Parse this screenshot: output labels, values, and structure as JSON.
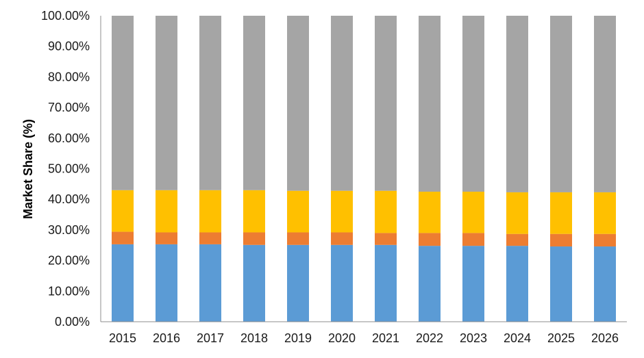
{
  "chart_data": {
    "type": "bar",
    "stacked": true,
    "categories": [
      "2015",
      "2016",
      "2017",
      "2018",
      "2019",
      "2020",
      "2021",
      "2022",
      "2023",
      "2024",
      "2025",
      "2026"
    ],
    "series": [
      {
        "color": "#5B9BD5",
        "values": [
          25.3,
          25.3,
          25.3,
          25.1,
          25.1,
          25.1,
          25.1,
          24.8,
          24.8,
          24.8,
          24.6,
          24.6
        ]
      },
      {
        "color": "#ED7D31",
        "values": [
          4.1,
          3.9,
          3.9,
          4.1,
          4.1,
          4.1,
          3.9,
          4.2,
          4.2,
          3.9,
          4.1,
          4.1
        ]
      },
      {
        "color": "#FFC000",
        "values": [
          13.6,
          13.8,
          13.8,
          13.8,
          13.6,
          13.6,
          13.8,
          13.5,
          13.5,
          13.6,
          13.6,
          13.6
        ]
      },
      {
        "color": "#A5A5A5",
        "values": [
          57.0,
          57.0,
          57.0,
          57.0,
          57.2,
          57.2,
          57.2,
          57.5,
          57.5,
          57.7,
          57.7,
          57.7
        ]
      }
    ],
    "ylabel": "Market Share (%)",
    "xlabel": "",
    "ylim": [
      0,
      100
    ],
    "yticks": [
      "0.00%",
      "10.00%",
      "20.00%",
      "30.00%",
      "40.00%",
      "50.00%",
      "60.00%",
      "70.00%",
      "80.00%",
      "90.00%",
      "100.00%"
    ],
    "grid": false,
    "legend": "none"
  }
}
